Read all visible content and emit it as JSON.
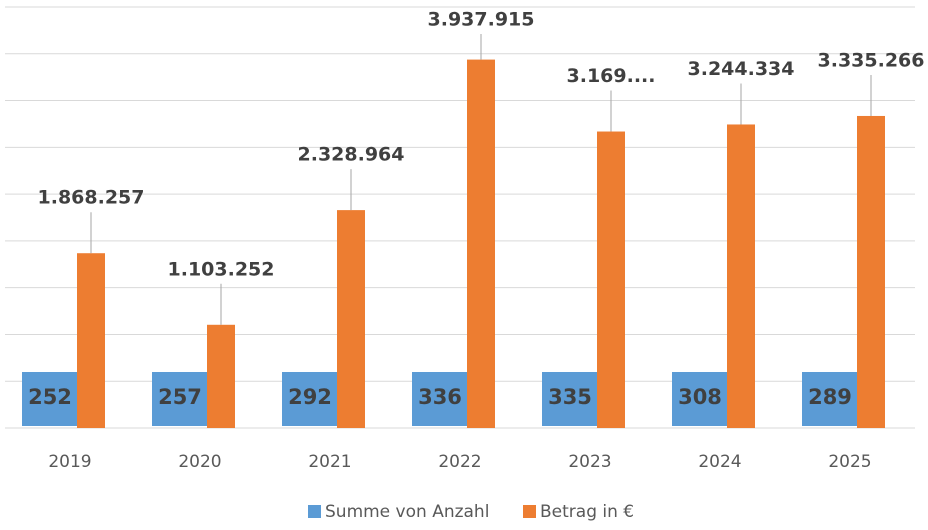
{
  "chart_data": {
    "type": "bar",
    "categories": [
      "2019",
      "2020",
      "2021",
      "2022",
      "2023",
      "2024",
      "2025"
    ],
    "series": [
      {
        "name": "Summe von Anzahl",
        "color": "#5b9bd5",
        "values": [
          252,
          257,
          292,
          336,
          335,
          308,
          289
        ]
      },
      {
        "name": "Betrag in €",
        "color": "#ed7d31",
        "values": [
          1868257,
          1103252,
          2328964,
          3937915,
          3169000,
          3244334,
          3335266
        ],
        "value_labels": [
          "1.868.257",
          "1.103.252",
          "2.328.964",
          "3.937.915",
          "3.169....",
          "3.244.334",
          "3.335.266"
        ]
      }
    ],
    "ylim": [
      0,
      4500000
    ],
    "yticks": [
      0,
      500000,
      1000000,
      1500000,
      2000000,
      2500000,
      3000000,
      3500000,
      4000000,
      4500000
    ],
    "grid": true
  }
}
